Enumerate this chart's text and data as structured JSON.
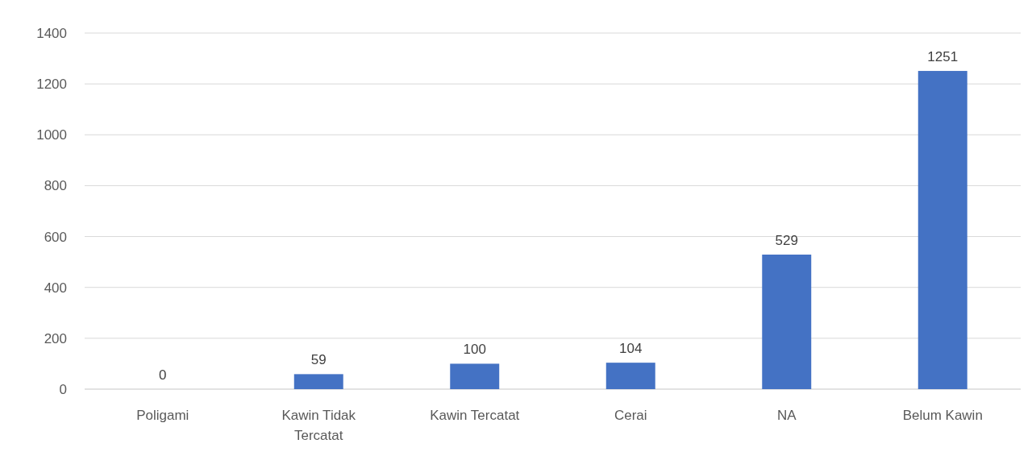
{
  "chart_data": {
    "type": "bar",
    "categories": [
      "Poligami",
      "Kawin Tidak Tercatat",
      "Kawin Tercatat",
      "Cerai",
      "NA",
      "Belum Kawin"
    ],
    "values": [
      0,
      59,
      100,
      104,
      529,
      1251
    ],
    "color": "#4472c4",
    "ylim": [
      0,
      1400
    ],
    "yticks": [
      0,
      200,
      400,
      600,
      800,
      1000,
      1200,
      1400
    ],
    "grid": "y",
    "data_labels": true
  }
}
